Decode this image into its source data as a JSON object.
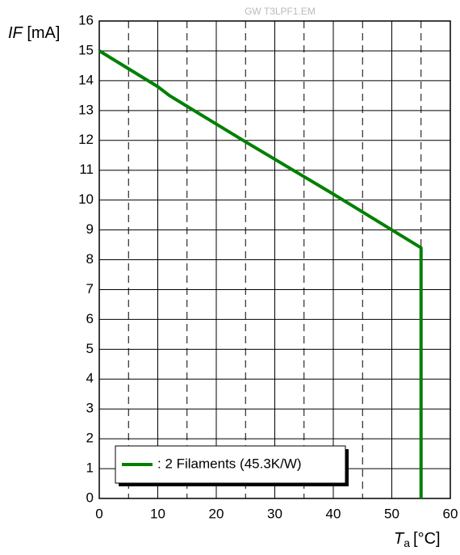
{
  "chart_data": {
    "type": "line",
    "watermark": "GW T3LPF1.EM",
    "ylabel": {
      "symbol": "IF",
      "unit": "[mA]"
    },
    "xlabel": {
      "symbol": "T",
      "subscript": "a",
      "unit": "[°C]"
    },
    "x": [
      0,
      10,
      12,
      25,
      40,
      50,
      55,
      55
    ],
    "series": [
      {
        "name": ": 2 Filaments (45.3K/W)",
        "color": "#008000",
        "values": [
          15,
          13.8,
          13.5,
          11.95,
          10.2,
          9,
          8.4,
          0
        ]
      }
    ],
    "xlim": [
      0,
      60
    ],
    "xticks": [
      0,
      10,
      20,
      30,
      40,
      50,
      60
    ],
    "xminor": [
      5,
      15,
      25,
      35,
      45,
      55
    ],
    "ylim": [
      0,
      16
    ],
    "yticks": [
      0,
      1,
      2,
      3,
      4,
      5,
      6,
      7,
      8,
      9,
      10,
      11,
      12,
      13,
      14,
      15,
      16
    ],
    "grid": true,
    "legend": "lower left"
  }
}
